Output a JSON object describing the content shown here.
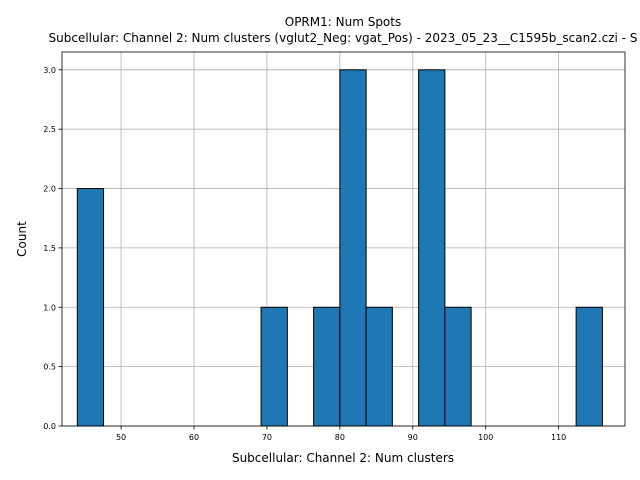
{
  "chart_data": {
    "type": "bar",
    "title": "OPRM1: Num Spots",
    "subtitle": "Subcellular: Channel 2: Num clusters (vglut2_Neg: vgat_Pos) - 2023_05_23__C1595b_scan2.czi - S",
    "xlabel": "Subcellular: Channel 2: Num clusters",
    "ylabel": "Count",
    "xlim": [
      41.9,
      119.1
    ],
    "ylim": [
      0,
      3.15
    ],
    "xticks": [
      50,
      60,
      70,
      80,
      90,
      100,
      110
    ],
    "yticks": [
      "0.0",
      "0.5",
      "1.0",
      "1.5",
      "2.0",
      "2.5",
      "3.0"
    ],
    "bins": [
      {
        "start": 44.0,
        "end": 47.6,
        "value": 2
      },
      {
        "start": 69.2,
        "end": 72.8,
        "value": 1
      },
      {
        "start": 76.4,
        "end": 80.0,
        "value": 1
      },
      {
        "start": 80.0,
        "end": 83.6,
        "value": 3
      },
      {
        "start": 83.6,
        "end": 87.2,
        "value": 1
      },
      {
        "start": 90.8,
        "end": 94.4,
        "value": 3
      },
      {
        "start": 94.4,
        "end": 98.0,
        "value": 1
      },
      {
        "start": 112.4,
        "end": 116.0,
        "value": 1
      }
    ],
    "grid": true,
    "colors": {
      "bar": "#1f77b4",
      "edge": "#000000",
      "grid": "#b0b0b0"
    }
  }
}
